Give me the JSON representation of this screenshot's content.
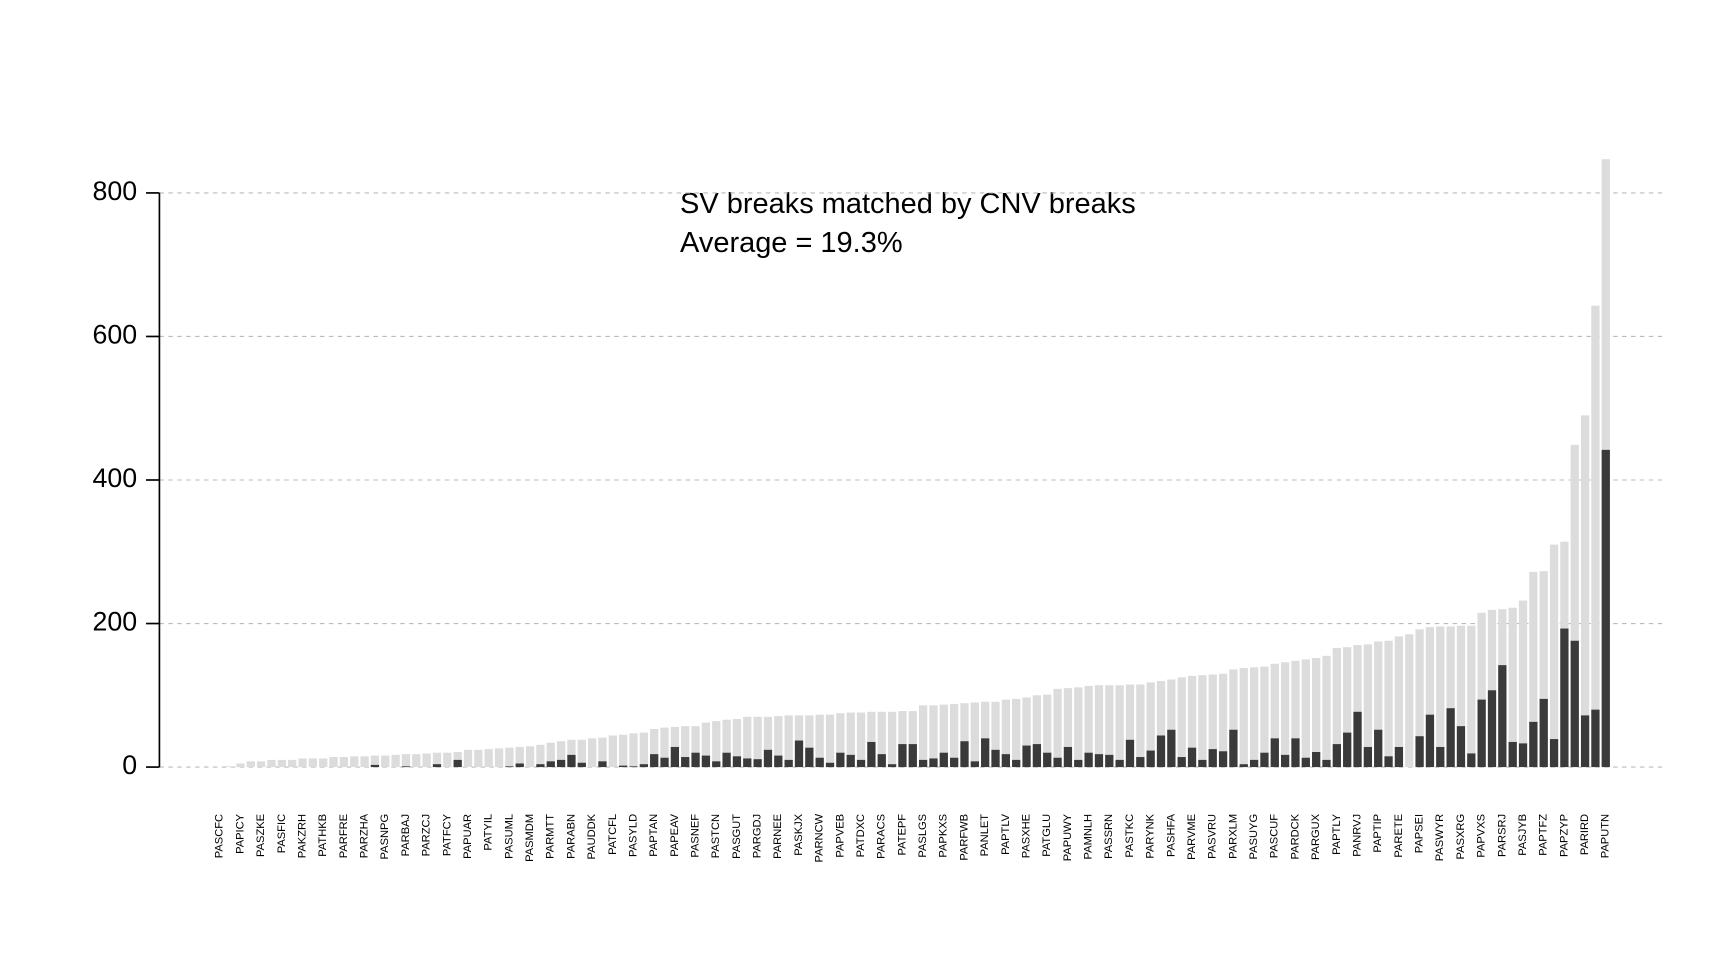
{
  "chart_data": {
    "type": "bar",
    "title": "SV breaks matched by CNV breaks",
    "subtitle": "Average = 19.3%",
    "categories": [
      "PASCFC",
      null,
      "PAPICY",
      null,
      "PASZKE",
      null,
      "PASFIC",
      null,
      "PAKZRH",
      null,
      "PATHKB",
      null,
      "PARFRE",
      null,
      "PARZHA",
      null,
      "PASNPG",
      null,
      "PARBAJ",
      null,
      "PARZCJ",
      null,
      "PATFCY",
      null,
      "PAPUAR",
      null,
      "PATYIL",
      null,
      "PASUML",
      null,
      "PASMDM",
      null,
      "PARMTT",
      null,
      "PARABN",
      null,
      "PAUDDK",
      null,
      "PATCFL",
      null,
      "PASYLD",
      null,
      "PAPTAN",
      null,
      "PAPEAV",
      null,
      "PASNEF",
      null,
      "PASTCN",
      null,
      "PASGUT",
      null,
      "PARGDJ",
      null,
      "PARNEE",
      null,
      "PASKJX",
      null,
      "PARNCW",
      null,
      "PAPVEB",
      null,
      "PATDXC",
      null,
      "PARACS",
      null,
      "PATEPF",
      null,
      "PASLGS",
      null,
      "PAPKXS",
      null,
      "PARFWB",
      null,
      "PANLET",
      null,
      "PAPTLV",
      null,
      "PASXHE",
      null,
      "PATGLU",
      null,
      "PAPUWY",
      null,
      "PAMNLH",
      null,
      "PASSRN",
      null,
      "PASTKC",
      null,
      "PARYNK",
      null,
      "PASHFA",
      null,
      "PARVME",
      null,
      "PASVRU",
      null,
      "PARXLM",
      null,
      "PASUYG",
      null,
      "PASCUF",
      null,
      "PARDCK",
      null,
      "PARGUX",
      null,
      "PAPTLY",
      null,
      "PANRVJ",
      null,
      "PAPTIP",
      null,
      "PARETE",
      null,
      "PAPSEI",
      null,
      "PASWYR",
      null,
      "PASXRG",
      null,
      "PAPVXS",
      null,
      "PARSRJ",
      null,
      "PASJYB",
      null,
      "PAPTFZ",
      null,
      "PAPZYP",
      null,
      "PARIRD",
      null,
      "PAPUTN"
    ],
    "series": [
      {
        "color": "#dcdcdc",
        "values": [
          0,
          1,
          5,
          8,
          8,
          10,
          10,
          10,
          12,
          12,
          12,
          14,
          14,
          15,
          15,
          16,
          16,
          17,
          18,
          18,
          19,
          20,
          20,
          21,
          24,
          24,
          25,
          26,
          27,
          28,
          29,
          31,
          34,
          36,
          38,
          38,
          40,
          41,
          44,
          45,
          47,
          48,
          53,
          55,
          56,
          57,
          57,
          62,
          64,
          66,
          67,
          70,
          70,
          70,
          71,
          72,
          72,
          72,
          73,
          73,
          75,
          76,
          76,
          77,
          77,
          77,
          78,
          78,
          86,
          86,
          87,
          88,
          89,
          90,
          91,
          91,
          94,
          95,
          97,
          100,
          101,
          109,
          110,
          111,
          113,
          114,
          114,
          114,
          115,
          115,
          118,
          120,
          122,
          125,
          127,
          128,
          129,
          130,
          136,
          138,
          139,
          140,
          144,
          146,
          148,
          150,
          152,
          155,
          166,
          167,
          170,
          171,
          175,
          176,
          182,
          185,
          192,
          195,
          196,
          196,
          197,
          197,
          215,
          219,
          220,
          222,
          232,
          272,
          273,
          310,
          314,
          449,
          490,
          643,
          847
        ]
      },
      {
        "color": "#3a3a3a",
        "values": [
          0,
          0,
          0,
          0,
          0,
          0,
          0,
          0,
          0,
          0,
          0,
          0,
          0,
          0,
          0,
          3,
          0,
          0,
          1,
          0,
          0,
          4,
          0,
          10,
          0,
          0,
          0,
          0,
          1,
          5,
          0,
          4,
          8,
          10,
          17,
          6,
          0,
          8,
          0,
          2,
          1,
          4,
          18,
          13,
          28,
          14,
          20,
          16,
          8,
          20,
          15,
          12,
          11,
          24,
          16,
          10,
          37,
          27,
          13,
          6,
          20,
          17,
          10,
          35,
          18,
          4,
          32,
          32,
          10,
          12,
          20,
          13,
          36,
          8,
          40,
          24,
          18,
          10,
          30,
          32,
          20,
          13,
          28,
          10,
          20,
          18,
          17,
          10,
          38,
          14,
          23,
          44,
          52,
          14,
          27,
          10,
          25,
          22,
          52,
          4,
          10,
          20,
          40,
          17,
          40,
          13,
          21,
          10,
          32,
          48,
          77,
          28,
          52,
          15,
          28,
          0,
          43,
          73,
          28,
          82,
          57,
          19,
          94,
          107,
          142,
          35,
          33,
          63,
          95,
          39,
          193,
          176,
          72,
          80,
          442
        ]
      }
    ],
    "ylim": [
      0,
      800
    ],
    "yticks": [
      0,
      200,
      400,
      600,
      800
    ],
    "grid": true
  }
}
